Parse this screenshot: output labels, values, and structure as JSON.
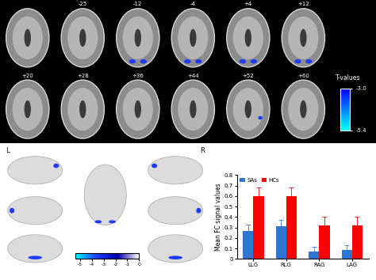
{
  "brain_slices": {
    "slice_labels": [
      null,
      "-25",
      "-12",
      "-4",
      "+4",
      "+12",
      "+20",
      "+28",
      "+36",
      "+44",
      "+52",
      "+60"
    ],
    "colorbar": {
      "title": "T-values",
      "range": [
        -5.4,
        -3.0
      ],
      "ticks": [
        -3.0,
        -5.4
      ]
    }
  },
  "surface_views": {
    "left_label": "L",
    "right_label": "R",
    "colorbar": {
      "range": [
        -5.4,
        0
      ],
      "ticks": [
        -5,
        -4,
        -3,
        -2,
        -1,
        0
      ]
    }
  },
  "chart_data": {
    "type": "bar",
    "categories": [
      "LLG",
      "RLG",
      "RAG",
      "LAG"
    ],
    "y_label": "Mean FC signal values",
    "ylim": [
      0,
      0.8
    ],
    "yticks": [
      0,
      0.1,
      0.2,
      0.3,
      0.4,
      0.5,
      0.6,
      0.7,
      0.8
    ],
    "legend": "upper left",
    "series": [
      {
        "name": "SAs",
        "color": "#2e75d4",
        "values": [
          0.27,
          0.31,
          0.07,
          0.09
        ],
        "errors": [
          0.06,
          0.06,
          0.05,
          0.04
        ]
      },
      {
        "name": "HCs",
        "color": "#ff0000",
        "values": [
          0.6,
          0.6,
          0.32,
          0.32
        ],
        "errors": [
          0.08,
          0.08,
          0.08,
          0.08
        ]
      }
    ]
  }
}
